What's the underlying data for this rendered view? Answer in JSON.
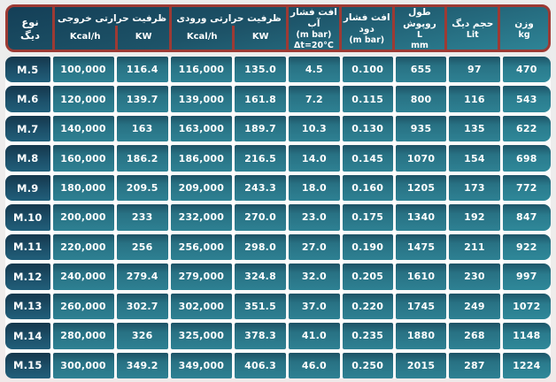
{
  "colors": {
    "header_border_red": "#9d3a34",
    "header_teal_top": "#143f57",
    "header_teal_bottom": "#2e8496",
    "cell_teal": "#2e8193",
    "type_cell_navy": "#1c4f69",
    "text": "#ffffff",
    "page_background": "#ececec"
  },
  "table": {
    "header": {
      "type": {
        "line1": "نوع",
        "line2": "دیگ"
      },
      "output_capacity": {
        "title": "ظرفیت حرارتی خروجی",
        "unit1": "Kcal/h",
        "unit2": "KW"
      },
      "input_capacity": {
        "title": "ظرفیت حرارتی ورودی",
        "unit1": "Kcal/h",
        "unit2": "KW"
      },
      "water_pressure_drop": {
        "title": "افت فشار آب",
        "line2": "(m bar)",
        "line3": "Δt=20°C"
      },
      "flue_pressure_drop": {
        "title": "افت فشار دود",
        "line2": "(m bar)"
      },
      "casing_length": {
        "title": "طول روپوش",
        "line2": "L",
        "line3": "mm"
      },
      "boiler_volume": {
        "title": "حجم دیگ",
        "line2": "Lit"
      },
      "weight": {
        "title": "وزن",
        "line2": "kg"
      }
    }
  },
  "chart_data": {
    "type": "table",
    "columns": [
      {
        "key": "boiler_type",
        "label_fa": "نوع دیگ",
        "unit": ""
      },
      {
        "key": "output_capacity_kcal_h",
        "label_fa": "ظرفیت حرارتی خروجی",
        "unit": "Kcal/h"
      },
      {
        "key": "output_capacity_kw",
        "label_fa": "ظرفیت حرارتی خروجی",
        "unit": "KW"
      },
      {
        "key": "input_capacity_kcal_h",
        "label_fa": "ظرفیت حرارتی ورودی",
        "unit": "Kcal/h"
      },
      {
        "key": "input_capacity_kw",
        "label_fa": "ظرفیت حرارتی ورودی",
        "unit": "KW"
      },
      {
        "key": "water_pressure_drop",
        "label_fa": "افت فشار آب",
        "unit": "m bar",
        "condition": "Δt=20°C"
      },
      {
        "key": "flue_pressure_drop",
        "label_fa": "افت فشار دود",
        "unit": "m bar"
      },
      {
        "key": "casing_length_L",
        "label_fa": "طول روپوش",
        "unit": "mm"
      },
      {
        "key": "boiler_volume",
        "label_fa": "حجم دیگ",
        "unit": "Lit"
      },
      {
        "key": "weight",
        "label_fa": "وزن",
        "unit": "kg"
      }
    ],
    "rows": [
      [
        "M.5",
        "100,000",
        "116.4",
        "116,000",
        "135.0",
        "4.5",
        "0.100",
        "655",
        "97",
        "470"
      ],
      [
        "M.6",
        "120,000",
        "139.7",
        "139,000",
        "161.8",
        "7.2",
        "0.115",
        "800",
        "116",
        "543"
      ],
      [
        "M.7",
        "140,000",
        "163",
        "163,000",
        "189.7",
        "10.3",
        "0.130",
        "935",
        "135",
        "622"
      ],
      [
        "M.8",
        "160,000",
        "186.2",
        "186,000",
        "216.5",
        "14.0",
        "0.145",
        "1070",
        "154",
        "698"
      ],
      [
        "M.9",
        "180,000",
        "209.5",
        "209,000",
        "243.3",
        "18.0",
        "0.160",
        "1205",
        "173",
        "772"
      ],
      [
        "M.10",
        "200,000",
        "233",
        "232,000",
        "270.0",
        "23.0",
        "0.175",
        "1340",
        "192",
        "847"
      ],
      [
        "M.11",
        "220,000",
        "256",
        "256,000",
        "298.0",
        "27.0",
        "0.190",
        "1475",
        "211",
        "922"
      ],
      [
        "M.12",
        "240,000",
        "279.4",
        "279,000",
        "324.8",
        "32.0",
        "0.205",
        "1610",
        "230",
        "997"
      ],
      [
        "M.13",
        "260,000",
        "302.7",
        "302,000",
        "351.5",
        "37.0",
        "0.220",
        "1745",
        "249",
        "1072"
      ],
      [
        "M.14",
        "280,000",
        "326",
        "325,000",
        "378.3",
        "41.0",
        "0.235",
        "1880",
        "268",
        "1148"
      ],
      [
        "M.15",
        "300,000",
        "349.2",
        "349,000",
        "406.3",
        "46.0",
        "0.250",
        "2015",
        "287",
        "1224"
      ]
    ]
  }
}
